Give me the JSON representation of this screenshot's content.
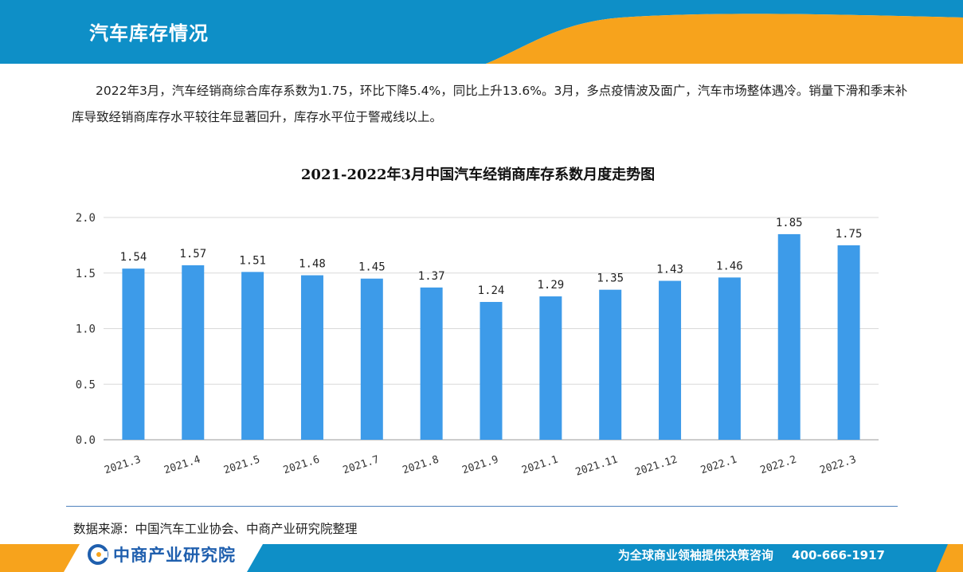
{
  "header": {
    "title": "汽车库存情况",
    "colors": {
      "blue": "#0e8fc7",
      "orange": "#f7a31c"
    }
  },
  "intro": {
    "text": "2022年3月，汽车经销商综合库存系数为1.75，环比下降5.4%，同比上升13.6%。3月，多点疫情波及面广，汽车市场整体遇冷。销量下滑和季末补库导致经销商库存水平较往年显著回升，库存水平位于警戒线以上。"
  },
  "chart_data": {
    "type": "bar",
    "title": "2021-2022年3月中国汽车经销商库存系数月度走势图",
    "categories": [
      "2021.3",
      "2021.4",
      "2021.5",
      "2021.6",
      "2021.7",
      "2021.8",
      "2021.9",
      "2021.1",
      "2021.11",
      "2021.12",
      "2022.1",
      "2022.2",
      "2022.3"
    ],
    "values": [
      1.54,
      1.57,
      1.51,
      1.48,
      1.45,
      1.37,
      1.24,
      1.29,
      1.35,
      1.43,
      1.46,
      1.85,
      1.75
    ],
    "value_labels": [
      "1.54",
      "1.57",
      "1.51",
      "1.48",
      "1.45",
      "1.37",
      "1.24",
      "1.29",
      "1.35",
      "1.43",
      "1.46",
      "1.85",
      "1.75"
    ],
    "yticks": [
      "0.0",
      "0.5",
      "1.0",
      "1.5",
      "2.0"
    ],
    "ylim": [
      0,
      2.0
    ],
    "grid": true,
    "bar_color": "#3d9be9",
    "xlabel": "",
    "ylabel": ""
  },
  "source": {
    "text": "数据来源：中国汽车工业协会、中商产业研究院整理"
  },
  "footer": {
    "logo_text": "中商产业研究院",
    "slogan": "为全球商业领袖提供决策咨询",
    "phone": "400-666-1917",
    "colors": {
      "bar": "#0e8fc7",
      "accent": "#f7a31c"
    }
  }
}
